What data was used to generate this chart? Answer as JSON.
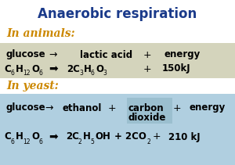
{
  "title": "Anaerobic respiration",
  "title_color": "#1a3a8a",
  "bg_color": "#ffffff",
  "animals_label": "In animals:",
  "animals_label_color": "#cc8800",
  "yeast_label": "In yeast:",
  "yeast_label_color": "#cc8800",
  "animals_bg": "#d4d4bc",
  "yeast_bg": "#b0cfe0",
  "co2_box_color": "#9bbfcf",
  "figw": 3.0,
  "figh": 2.11,
  "dpi": 100
}
